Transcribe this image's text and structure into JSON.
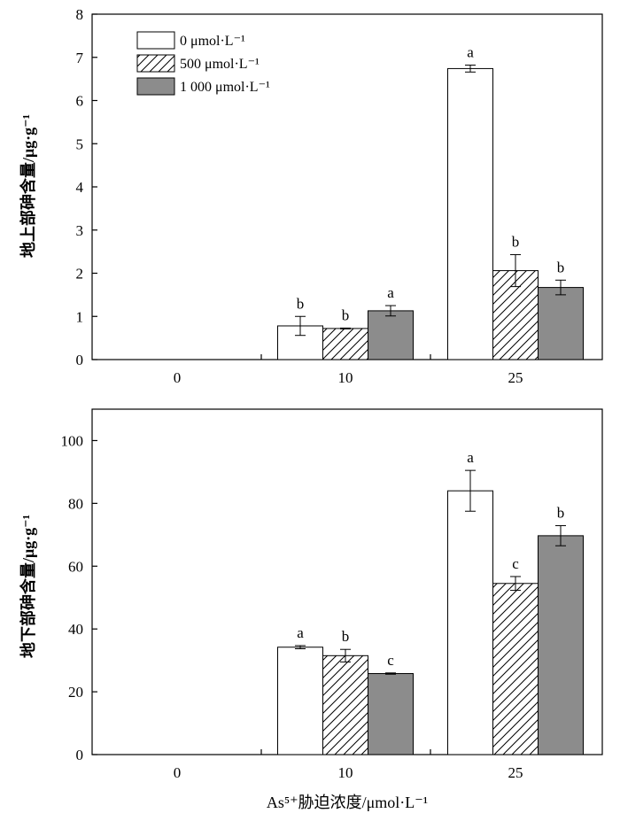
{
  "chart_data": [
    {
      "type": "bar",
      "categories": [
        "0",
        "10",
        "25"
      ],
      "series": [
        {
          "name": "0 μmol·L⁻¹",
          "values": [
            0,
            0.78,
            6.74
          ],
          "errors": [
            0,
            0.22,
            0.08
          ],
          "labels": [
            "",
            "b",
            "a"
          ]
        },
        {
          "name": "500 μmol·L⁻¹",
          "values": [
            0,
            0.72,
            2.06
          ],
          "errors": [
            0,
            0.01,
            0.37
          ],
          "labels": [
            "",
            "b",
            "b"
          ]
        },
        {
          "name": "1 000 μmol·L⁻¹",
          "values": [
            0,
            1.13,
            1.67
          ],
          "errors": [
            0,
            0.12,
            0.17
          ],
          "labels": [
            "",
            "a",
            "b"
          ]
        }
      ],
      "ylabel": "地上部砷含量/μg·g⁻¹",
      "xlabel": "",
      "ylim": [
        0,
        8
      ],
      "yticks": [
        "0",
        "1",
        "2",
        "3",
        "4",
        "5",
        "6",
        "7",
        "8"
      ],
      "legend": "top-left",
      "grid": false
    },
    {
      "type": "bar",
      "categories": [
        "0",
        "10",
        "25"
      ],
      "series": [
        {
          "name": "0 μmol·L⁻¹",
          "values": [
            0,
            34.2,
            84.0
          ],
          "errors": [
            0,
            0.5,
            6.5
          ],
          "labels": [
            "",
            "a",
            "a"
          ]
        },
        {
          "name": "500 μmol·L⁻¹",
          "values": [
            0,
            31.5,
            54.5
          ],
          "errors": [
            0,
            2.0,
            2.2
          ],
          "labels": [
            "",
            "b",
            "c"
          ]
        },
        {
          "name": "1 000 μmol·L⁻¹",
          "values": [
            0,
            25.8,
            69.7
          ],
          "errors": [
            0,
            0.2,
            3.2
          ],
          "labels": [
            "",
            "c",
            "b"
          ]
        }
      ],
      "ylabel": "地下部砷含量/μg·g⁻¹",
      "xlabel": "As⁵⁺胁迫浓度/μmol·L⁻¹",
      "ylim": [
        0,
        110
      ],
      "yticks": [
        "0",
        "20",
        "40",
        "60",
        "80",
        "100"
      ],
      "grid": false
    }
  ],
  "colors": {
    "series_fill": [
      "#ffffff",
      "hatch",
      "#8c8c8c"
    ],
    "axis": "#000000"
  }
}
